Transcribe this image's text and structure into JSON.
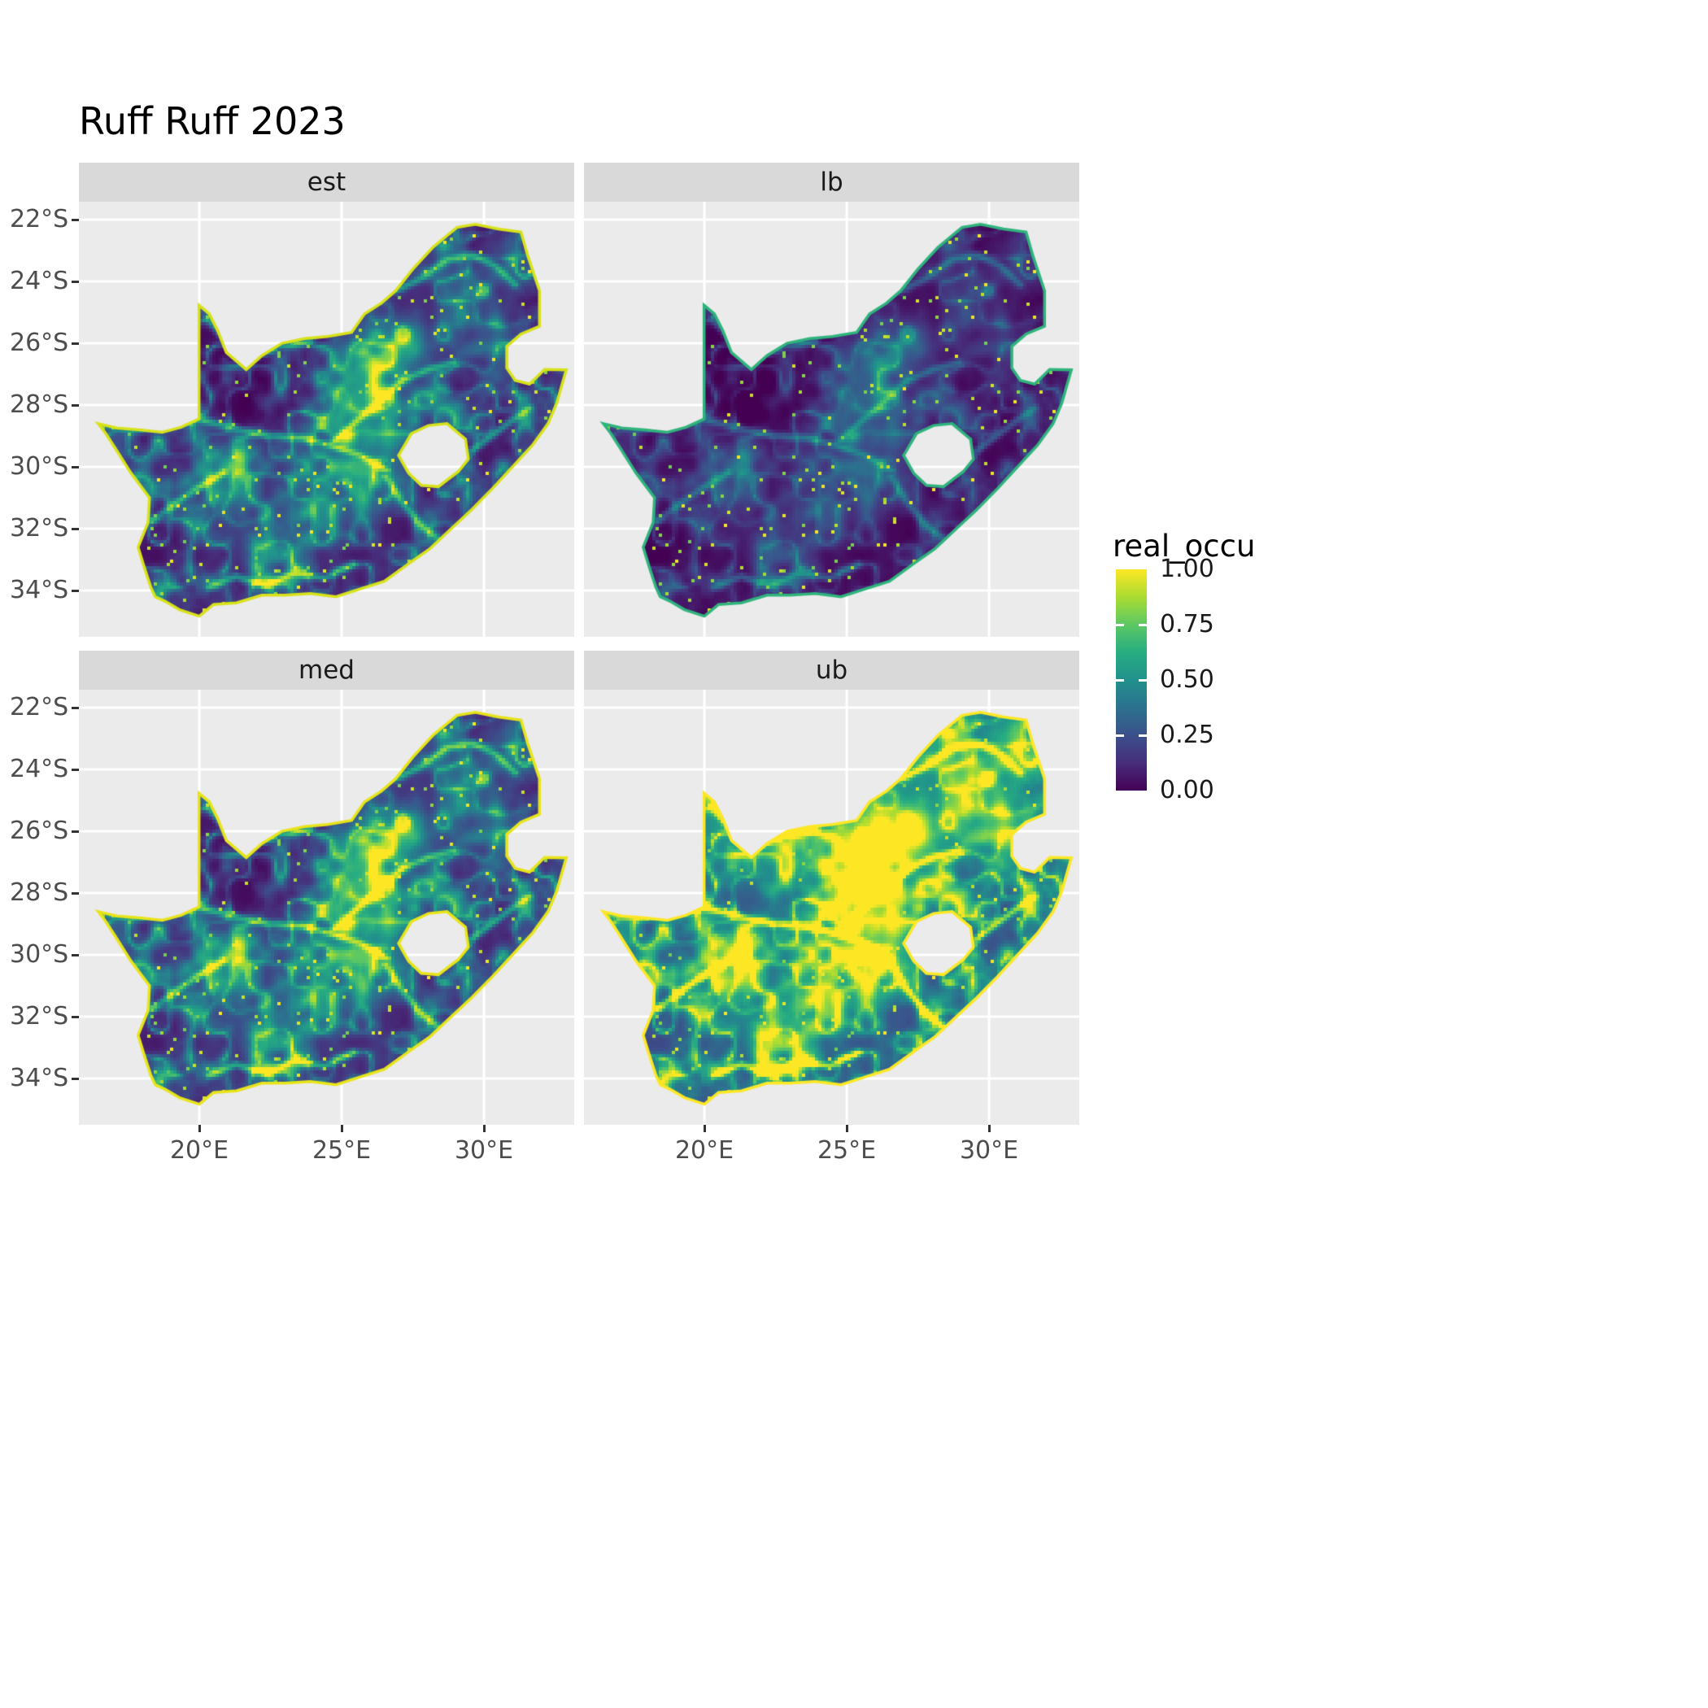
{
  "title": "Ruff Ruff 2023",
  "facets": [
    {
      "id": "est",
      "label": "est"
    },
    {
      "id": "lb",
      "label": "lb"
    },
    {
      "id": "med",
      "label": "med"
    },
    {
      "id": "ub",
      "label": "ub"
    }
  ],
  "axes": {
    "y_ticks": [
      "22°S",
      "24°S",
      "26°S",
      "28°S",
      "30°S",
      "32°S",
      "34°S"
    ],
    "y_values": [
      -22,
      -24,
      -26,
      -28,
      -30,
      -32,
      -34
    ],
    "x_ticks": [
      "20°E",
      "25°E",
      "30°E"
    ],
    "x_values": [
      20,
      25,
      30
    ]
  },
  "legend": {
    "title": "real_occu",
    "ticks": [
      "1.00",
      "0.75",
      "0.50",
      "0.25",
      "0.00"
    ],
    "tick_values": [
      1.0,
      0.75,
      0.5,
      0.25,
      0.0
    ]
  },
  "colors": {
    "background": "#FFFFFF",
    "panel_bg": "#EBEBEB",
    "strip_bg": "#D9D9D9",
    "grid": "#FFFFFF",
    "title_text": "#000000",
    "strip_text": "#1A1A1A",
    "axis_text": "#4D4D4D"
  },
  "chart_data": {
    "type": "heatmap",
    "subtype": "faceted_raster_map",
    "title": "Ruff Ruff 2023",
    "region": "South Africa",
    "value_name": "real_occu",
    "value_range": [
      0,
      1
    ],
    "facets": [
      "est",
      "lb",
      "med",
      "ub"
    ],
    "facet_relative_intensity": {
      "est": 1.0,
      "lb": 0.6,
      "med": 1.1,
      "ub": 1.4
    },
    "x_axis": {
      "label": "",
      "ticks": [
        "20°E",
        "25°E",
        "30°E"
      ],
      "tick_values": [
        20,
        25,
        30
      ],
      "range": [
        15.77,
        33.17
      ]
    },
    "y_axis": {
      "label": "",
      "ticks": [
        "22°S",
        "24°S",
        "26°S",
        "28°S",
        "30°S",
        "32°S",
        "34°S"
      ],
      "tick_values": [
        -22,
        -24,
        -26,
        -28,
        -30,
        -32,
        -34
      ],
      "range": [
        -35.5,
        -21.42
      ]
    },
    "grid": true,
    "legend_position": "right",
    "palette": {
      "name": "viridis",
      "stops": [
        {
          "t": 0.0,
          "color": "#440154"
        },
        {
          "t": 0.125,
          "color": "#472d7b"
        },
        {
          "t": 0.25,
          "color": "#3b518b"
        },
        {
          "t": 0.375,
          "color": "#2c718e"
        },
        {
          "t": 0.5,
          "color": "#21918c"
        },
        {
          "t": 0.625,
          "color": "#27ad81"
        },
        {
          "t": 0.75,
          "color": "#5cc863"
        },
        {
          "t": 0.875,
          "color": "#aadc32"
        },
        {
          "t": 1.0,
          "color": "#fde725"
        }
      ]
    },
    "geo": {
      "south_africa_outline": [
        [
          16.45,
          -28.6
        ],
        [
          17.1,
          -28.74
        ],
        [
          17.9,
          -28.8
        ],
        [
          18.7,
          -28.88
        ],
        [
          19.35,
          -28.72
        ],
        [
          19.99,
          -28.45
        ],
        [
          19.99,
          -24.77
        ],
        [
          20.35,
          -25.05
        ],
        [
          20.65,
          -25.6
        ],
        [
          20.95,
          -26.3
        ],
        [
          21.65,
          -26.85
        ],
        [
          22.2,
          -26.4
        ],
        [
          22.9,
          -26.0
        ],
        [
          23.7,
          -25.85
        ],
        [
          24.5,
          -25.78
        ],
        [
          25.35,
          -25.65
        ],
        [
          25.8,
          -25.05
        ],
        [
          26.4,
          -24.7
        ],
        [
          26.9,
          -24.3
        ],
        [
          27.5,
          -23.6
        ],
        [
          28.2,
          -22.9
        ],
        [
          29.05,
          -22.25
        ],
        [
          29.7,
          -22.15
        ],
        [
          30.5,
          -22.3
        ],
        [
          31.3,
          -22.4
        ],
        [
          31.55,
          -23.2
        ],
        [
          31.95,
          -24.3
        ],
        [
          31.95,
          -25.45
        ],
        [
          31.3,
          -25.7
        ],
        [
          30.8,
          -26.1
        ],
        [
          30.8,
          -26.8
        ],
        [
          31.1,
          -27.2
        ],
        [
          31.6,
          -27.32
        ],
        [
          32.13,
          -26.85
        ],
        [
          32.89,
          -26.86
        ],
        [
          32.55,
          -27.95
        ],
        [
          32.25,
          -28.6
        ],
        [
          31.7,
          -29.3
        ],
        [
          31.05,
          -29.95
        ],
        [
          30.3,
          -30.7
        ],
        [
          29.55,
          -31.4
        ],
        [
          28.85,
          -32.0
        ],
        [
          28.1,
          -32.65
        ],
        [
          27.4,
          -33.1
        ],
        [
          26.5,
          -33.7
        ],
        [
          25.65,
          -33.95
        ],
        [
          24.8,
          -34.2
        ],
        [
          23.9,
          -34.1
        ],
        [
          23.0,
          -34.15
        ],
        [
          22.2,
          -34.15
        ],
        [
          21.3,
          -34.4
        ],
        [
          20.5,
          -34.45
        ],
        [
          20.0,
          -34.83
        ],
        [
          19.3,
          -34.62
        ],
        [
          18.8,
          -34.35
        ],
        [
          18.45,
          -34.2
        ],
        [
          18.3,
          -33.9
        ],
        [
          18.05,
          -33.2
        ],
        [
          17.85,
          -32.6
        ],
        [
          18.2,
          -31.8
        ],
        [
          18.25,
          -31.0
        ],
        [
          17.6,
          -30.2
        ],
        [
          17.05,
          -29.4
        ],
        [
          16.7,
          -28.9
        ]
      ],
      "lesotho_hole": [
        [
          27.0,
          -29.63
        ],
        [
          27.45,
          -28.92
        ],
        [
          28.05,
          -28.66
        ],
        [
          28.7,
          -28.6
        ],
        [
          29.35,
          -29.1
        ],
        [
          29.45,
          -29.75
        ],
        [
          29.1,
          -30.15
        ],
        [
          28.4,
          -30.64
        ],
        [
          27.8,
          -30.6
        ],
        [
          27.35,
          -30.2
        ]
      ],
      "rivers": [
        [
          [
            16.55,
            -28.62
          ],
          [
            17.6,
            -28.76
          ],
          [
            18.8,
            -28.7
          ],
          [
            19.99,
            -28.46
          ],
          [
            21.2,
            -28.75
          ],
          [
            22.4,
            -29.0
          ],
          [
            23.6,
            -29.05
          ],
          [
            24.6,
            -29.3
          ],
          [
            25.65,
            -29.62
          ],
          [
            26.6,
            -30.12
          ]
        ],
        [
          [
            24.6,
            -29.3
          ],
          [
            25.4,
            -28.62
          ],
          [
            26.3,
            -27.92
          ],
          [
            27.15,
            -27.2
          ],
          [
            28.05,
            -26.85
          ],
          [
            28.95,
            -26.62
          ]
        ],
        [
          [
            26.9,
            -24.3
          ],
          [
            27.8,
            -23.9
          ],
          [
            28.7,
            -23.3
          ],
          [
            29.6,
            -23.15
          ],
          [
            30.4,
            -23.5
          ],
          [
            31.1,
            -24.1
          ]
        ],
        [
          [
            29.3,
            -29.65
          ],
          [
            30.1,
            -29.1
          ],
          [
            30.9,
            -28.55
          ],
          [
            31.6,
            -28.1
          ]
        ],
        [
          [
            20.3,
            -33.9
          ],
          [
            21.3,
            -33.55
          ],
          [
            22.3,
            -33.85
          ],
          [
            23.3,
            -33.45
          ],
          [
            24.4,
            -33.6
          ],
          [
            25.4,
            -33.15
          ]
        ],
        [
          [
            18.35,
            -31.75
          ],
          [
            19.2,
            -31.15
          ],
          [
            20.1,
            -30.6
          ],
          [
            20.85,
            -30.18
          ]
        ],
        [
          [
            26.55,
            -30.3
          ],
          [
            27.1,
            -31.1
          ],
          [
            27.8,
            -31.9
          ],
          [
            28.5,
            -32.4
          ]
        ],
        [
          [
            20.3,
            -25.2
          ],
          [
            20.9,
            -25.9
          ],
          [
            21.8,
            -26.5
          ],
          [
            22.8,
            -26.1
          ],
          [
            23.9,
            -25.95
          ]
        ]
      ],
      "hotspots": [
        [
          25.75,
          -28.55,
          1.5,
          0.55
        ],
        [
          26.9,
          -26.15,
          1.1,
          0.5
        ],
        [
          25.9,
          -26.9,
          1.0,
          0.3
        ],
        [
          20.9,
          -30.15,
          1.2,
          0.32
        ],
        [
          24.2,
          -30.9,
          1.6,
          0.28
        ],
        [
          26.4,
          -29.9,
          1.2,
          0.3
        ],
        [
          29.9,
          -25.6,
          1.3,
          0.22
        ],
        [
          30.9,
          -23.2,
          0.9,
          0.2
        ],
        [
          28.9,
          -24.4,
          1.0,
          0.18
        ],
        [
          22.2,
          -32.3,
          1.5,
          0.15
        ],
        [
          22.3,
          -27.2,
          2.4,
          -0.1
        ]
      ]
    }
  }
}
